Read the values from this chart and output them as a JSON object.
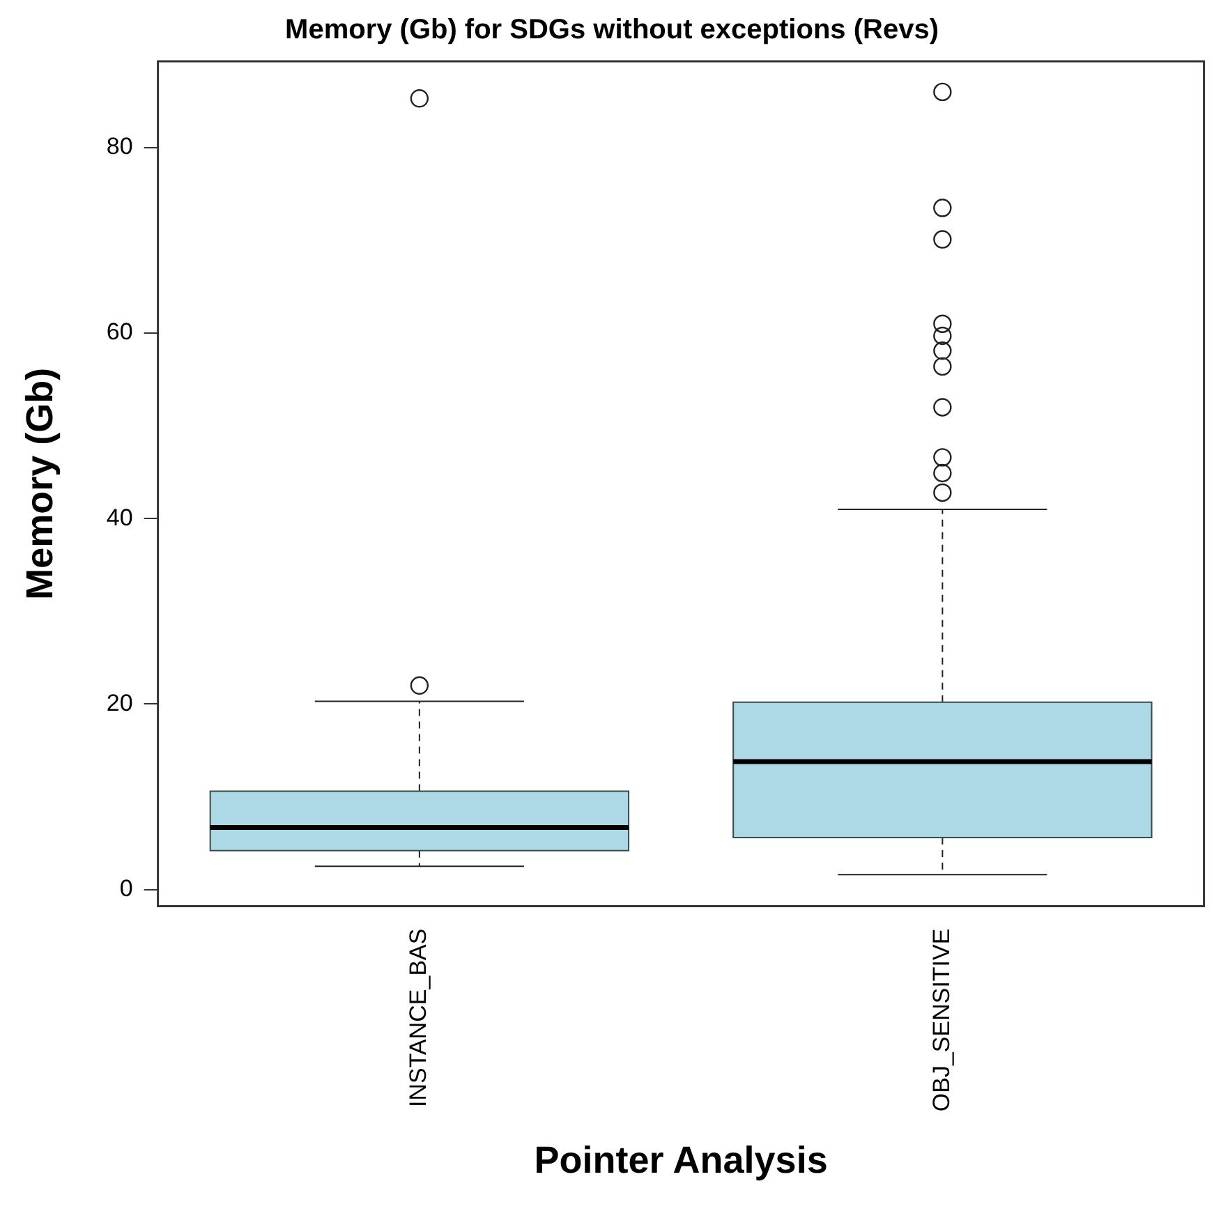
{
  "chart_data": {
    "type": "box",
    "title": "Memory (Gb) for SDGs without exceptions (Revs)",
    "xlabel": "Pointer Analysis",
    "ylabel": "Memory (Gb)",
    "categories": [
      "INSTANCE_BAS",
      "OBJ_SENSITIVE"
    ],
    "color": "#add8e6",
    "boxes": [
      {
        "low": 2.5,
        "q1": 4.2,
        "median": 6.7,
        "q3": 10.6,
        "high": 20.3,
        "outliers": [
          22.0,
          85.3
        ]
      },
      {
        "low": 1.6,
        "q1": 5.6,
        "median": 13.8,
        "q3": 20.2,
        "high": 41.0,
        "outliers": [
          42.8,
          44.9,
          46.6,
          52.0,
          56.4,
          58.1,
          59.7,
          61.0,
          70.1,
          73.5,
          86.0
        ]
      }
    ],
    "ylim": [
      -1.8,
      89.3
    ],
    "yticks": [
      0,
      20,
      40,
      60,
      80
    ],
    "grid": false,
    "legend": false
  }
}
